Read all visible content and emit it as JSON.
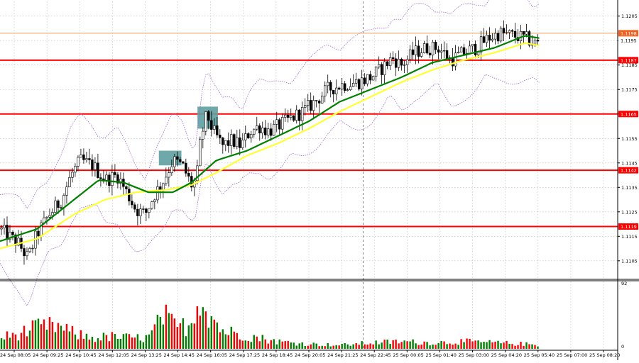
{
  "chart_data": [
    {
      "type": "candlestick",
      "symbol_note": "",
      "y_ticks": [
        "1.1205",
        "1.1195",
        "1.1185",
        "1.1175",
        "1.1165",
        "1.1155",
        "1.1145",
        "1.1135",
        "1.1125",
        "1.1115",
        "1.1105"
      ],
      "ylim": [
        1.1098,
        1.1211
      ],
      "x_ticks": [
        "24 Sep 08:05",
        "24 Sep 09:25",
        "24 Sep 10:45",
        "24 Sep 12:05",
        "24 Sep 13:25",
        "24 Sep 14:45",
        "24 Sep 16:05",
        "24 Sep 17:25",
        "24 Sep 18:45",
        "24 Sep 20:05",
        "24 Sep 21:25",
        "24 Sep 22:45",
        "25 Sep 00:05",
        "25 Sep 01:40",
        "25 Sep 03:00",
        "25 Sep 04:20",
        "25 Sep 05:40",
        "25 Sep 07:00",
        "25 Sep 08:20"
      ],
      "horizontal_levels": [
        {
          "value": 1.1187,
          "label": "1.1187",
          "color": "#ff0000"
        },
        {
          "value": 1.1165,
          "label": "1.1165",
          "color": "#ff0000"
        },
        {
          "value": 1.1142,
          "label": "1.1142",
          "color": "#ff0000"
        },
        {
          "value": 1.1119,
          "label": "1.1119",
          "color": "#ff0000"
        }
      ],
      "current_price": {
        "value": 1.1195,
        "label": "1.1195"
      },
      "high_marker": {
        "value": 1.1198,
        "label": "1.1198",
        "color": "#e8a060"
      },
      "highlight_zones": [
        {
          "x_from": 0.2572,
          "x_to": 0.2937,
          "y_from": 1.115,
          "y_to": 1.1144,
          "color": "#5f9ea0"
        },
        {
          "x_from": 0.3197,
          "x_to": 0.3528,
          "y_from": 1.1168,
          "y_to": 1.1159,
          "color": "#5f9ea0"
        }
      ],
      "price_path": [
        [
          0.0,
          1.1118
        ],
        [
          0.03,
          1.1112
        ],
        [
          0.045,
          1.1106
        ],
        [
          0.06,
          1.1116
        ],
        [
          0.08,
          1.1124
        ],
        [
          0.1,
          1.113
        ],
        [
          0.115,
          1.114
        ],
        [
          0.13,
          1.1146
        ],
        [
          0.15,
          1.1144
        ],
        [
          0.17,
          1.1138
        ],
        [
          0.19,
          1.114
        ],
        [
          0.205,
          1.1133
        ],
        [
          0.22,
          1.1126
        ],
        [
          0.235,
          1.1124
        ],
        [
          0.25,
          1.1132
        ],
        [
          0.265,
          1.1138
        ],
        [
          0.28,
          1.1146
        ],
        [
          0.295,
          1.1144
        ],
        [
          0.31,
          1.1136
        ],
        [
          0.318,
          1.1138
        ],
        [
          0.325,
          1.1155
        ],
        [
          0.335,
          1.1165
        ],
        [
          0.345,
          1.1158
        ],
        [
          0.36,
          1.1152
        ],
        [
          0.375,
          1.1154
        ],
        [
          0.39,
          1.1152
        ],
        [
          0.405,
          1.1158
        ],
        [
          0.42,
          1.116
        ],
        [
          0.435,
          1.1158
        ],
        [
          0.45,
          1.116
        ],
        [
          0.47,
          1.1163
        ],
        [
          0.49,
          1.1166
        ],
        [
          0.51,
          1.117
        ],
        [
          0.53,
          1.1175
        ],
        [
          0.555,
          1.1177
        ],
        [
          0.58,
          1.1178
        ],
        [
          0.6,
          1.118
        ],
        [
          0.62,
          1.1184
        ],
        [
          0.635,
          1.1188
        ],
        [
          0.65,
          1.1185
        ],
        [
          0.67,
          1.119
        ],
        [
          0.69,
          1.1192
        ],
        [
          0.71,
          1.1192
        ],
        [
          0.73,
          1.1187
        ],
        [
          0.75,
          1.119
        ],
        [
          0.77,
          1.1192
        ],
        [
          0.79,
          1.1196
        ],
        [
          0.81,
          1.1198
        ],
        [
          0.83,
          1.1197
        ],
        [
          0.85,
          1.1196
        ],
        [
          0.865,
          1.1194
        ]
      ],
      "ma_green": [
        [
          0.0,
          1.1113
        ],
        [
          0.06,
          1.1118
        ],
        [
          0.12,
          1.113
        ],
        [
          0.16,
          1.1138
        ],
        [
          0.2,
          1.1137
        ],
        [
          0.24,
          1.1133
        ],
        [
          0.28,
          1.1133
        ],
        [
          0.31,
          1.1137
        ],
        [
          0.35,
          1.1146
        ],
        [
          0.4,
          1.115
        ],
        [
          0.45,
          1.1156
        ],
        [
          0.5,
          1.1162
        ],
        [
          0.55,
          1.117
        ],
        [
          0.6,
          1.1175
        ],
        [
          0.65,
          1.118
        ],
        [
          0.7,
          1.1186
        ],
        [
          0.75,
          1.1189
        ],
        [
          0.8,
          1.1192
        ],
        [
          0.85,
          1.1197
        ],
        [
          0.873,
          1.1196
        ]
      ],
      "ma_yellow": [
        [
          0.0,
          1.111
        ],
        [
          0.06,
          1.1114
        ],
        [
          0.12,
          1.1124
        ],
        [
          0.17,
          1.113
        ],
        [
          0.22,
          1.1133
        ],
        [
          0.27,
          1.1134
        ],
        [
          0.31,
          1.1136
        ],
        [
          0.35,
          1.1141
        ],
        [
          0.4,
          1.1148
        ],
        [
          0.45,
          1.1153
        ],
        [
          0.5,
          1.1159
        ],
        [
          0.55,
          1.1166
        ],
        [
          0.6,
          1.1172
        ],
        [
          0.65,
          1.1178
        ],
        [
          0.7,
          1.1183
        ],
        [
          0.75,
          1.1187
        ],
        [
          0.8,
          1.119
        ],
        [
          0.85,
          1.1194
        ],
        [
          0.873,
          1.1193
        ]
      ],
      "separator_x": 0.5878,
      "colors": {
        "candle": "#000000",
        "ma_green": "#008000",
        "ma_yellow": "#ffff33",
        "envelope": "#9966cc",
        "level": "#ff0000"
      }
    },
    {
      "type": "bar",
      "name": "volume",
      "y_ticks": [
        "92",
        "0"
      ],
      "ylim": [
        0,
        92
      ],
      "bar_count": 190,
      "colors": {
        "up": "#008000",
        "down": "#ff0000",
        "neutral": "#000000"
      },
      "volume_profile": [
        [
          0.0,
          18
        ],
        [
          0.03,
          25
        ],
        [
          0.06,
          35
        ],
        [
          0.09,
          38
        ],
        [
          0.12,
          25
        ],
        [
          0.15,
          18
        ],
        [
          0.18,
          20
        ],
        [
          0.21,
          18
        ],
        [
          0.24,
          18
        ],
        [
          0.265,
          55
        ],
        [
          0.285,
          35
        ],
        [
          0.31,
          40
        ],
        [
          0.32,
          92
        ],
        [
          0.335,
          65
        ],
        [
          0.36,
          30
        ],
        [
          0.4,
          22
        ],
        [
          0.45,
          12
        ],
        [
          0.5,
          8
        ],
        [
          0.55,
          6
        ],
        [
          0.6,
          10
        ],
        [
          0.65,
          12
        ],
        [
          0.7,
          10
        ],
        [
          0.75,
          12
        ],
        [
          0.8,
          10
        ],
        [
          0.85,
          8
        ],
        [
          0.873,
          6
        ]
      ]
    }
  ]
}
